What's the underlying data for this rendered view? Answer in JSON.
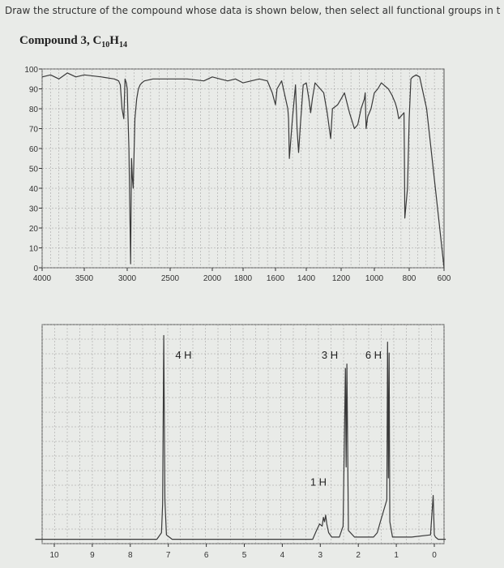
{
  "prompt": "Draw the structure of the compound whose data is shown below, then select all functional groups in the correct stru",
  "compound": {
    "name": "Compound 3, ",
    "c": "C",
    "c_count": "10",
    "h": "H",
    "h_count": "14"
  },
  "colors": {
    "background": "#e9ebe8",
    "grid": "#9a9a9a",
    "trace": "#3a3a3a",
    "frame": "#555555"
  },
  "chart_data": [
    {
      "type": "line",
      "title": "",
      "xlabel": "",
      "ylabel": "",
      "xlim": [
        4000,
        600
      ],
      "ylim": [
        0,
        100
      ],
      "x_ticks": [
        "4000",
        "3500",
        "3000",
        "2500",
        "2000",
        "1800",
        "1600",
        "1400",
        "1200",
        "1000",
        "800",
        "600"
      ],
      "x_tick_values": [
        4000,
        3500,
        3000,
        2500,
        2000,
        1800,
        1600,
        1400,
        1200,
        1000,
        800,
        600
      ],
      "y_ticks": [
        "0",
        "10",
        "20",
        "30",
        "40",
        "50",
        "60",
        "70",
        "80",
        "90",
        "100"
      ],
      "y_tick_values": [
        0,
        10,
        20,
        30,
        40,
        50,
        60,
        70,
        80,
        90,
        100
      ],
      "series": [
        {
          "x": [
            4000,
            3900,
            3800,
            3700,
            3600,
            3500,
            3300,
            3150,
            3100,
            3080,
            3060,
            3040,
            3025,
            3010,
            3000,
            2980,
            2960,
            2950,
            2940,
            2930,
            2910,
            2890,
            2870,
            2850,
            2830,
            2800,
            2700,
            2500,
            2300,
            2100,
            2000,
            1950,
            1900,
            1850,
            1800,
            1700,
            1650,
            1620,
            1610,
            1600,
            1590,
            1560,
            1520,
            1515,
            1510,
            1500,
            1490,
            1470,
            1460,
            1450,
            1440,
            1420,
            1400,
            1385,
            1375,
            1365,
            1350,
            1300,
            1280,
            1260,
            1250,
            1220,
            1200,
            1180,
            1150,
            1120,
            1100,
            1080,
            1060,
            1055,
            1050,
            1040,
            1020,
            1000,
            980,
            960,
            920,
            900,
            880,
            870,
            860,
            850,
            830,
            828,
            825,
            820,
            810,
            800,
            790,
            780,
            760,
            740,
            700,
            650,
            600
          ],
          "y": [
            96,
            97,
            95,
            98,
            96,
            97,
            96,
            95,
            94,
            92,
            80,
            75,
            95,
            93,
            90,
            60,
            2,
            55,
            45,
            40,
            75,
            85,
            90,
            92,
            93,
            94,
            95,
            95,
            95,
            94,
            96,
            95,
            94,
            95,
            93,
            95,
            94,
            88,
            85,
            82,
            90,
            94,
            80,
            75,
            55,
            65,
            75,
            92,
            70,
            58,
            70,
            92,
            93,
            85,
            78,
            85,
            93,
            88,
            78,
            65,
            80,
            82,
            85,
            88,
            78,
            70,
            72,
            80,
            85,
            88,
            70,
            76,
            80,
            88,
            90,
            93,
            90,
            87,
            83,
            80,
            75,
            76,
            78,
            60,
            25,
            30,
            40,
            75,
            95,
            96,
            97,
            96,
            80,
            40,
            0
          ]
        }
      ],
      "annotations": [],
      "grid": true
    },
    {
      "type": "line",
      "title": "",
      "xlabel": "",
      "ylabel": "",
      "xlim": [
        10.5,
        -0.3
      ],
      "ylim": [
        0,
        100
      ],
      "x_ticks": [
        "10",
        "9",
        "8",
        "7",
        "6",
        "5",
        "4",
        "3",
        "2",
        "1",
        "0"
      ],
      "x_tick_values": [
        10,
        9,
        8,
        7,
        6,
        5,
        4,
        3,
        2,
        1,
        0
      ],
      "series": [
        {
          "x": [
            10.5,
            9,
            7.3,
            7.18,
            7.15,
            7.12,
            7.09,
            7.05,
            6.9,
            5,
            4,
            3.2,
            3.1,
            3.02,
            2.95,
            2.92,
            2.89,
            2.86,
            2.83,
            2.78,
            2.7,
            2.5,
            2.4,
            2.34,
            2.32,
            2.3,
            2.26,
            2.1,
            1.6,
            1.5,
            1.42,
            1.25,
            1.23,
            1.21,
            1.19,
            1.17,
            1.1,
            0.6,
            0.1,
            0.03,
            0,
            -0.03,
            -0.1,
            -0.3
          ],
          "y": [
            2,
            2,
            2,
            5,
            18,
            95,
            20,
            4,
            2,
            2,
            2,
            2,
            6,
            9,
            8,
            12,
            10,
            13,
            9,
            5,
            3,
            3,
            8,
            80,
            35,
            82,
            6,
            3,
            3,
            5,
            10,
            20,
            92,
            30,
            87,
            10,
            3,
            3,
            4,
            22,
            4,
            3,
            2,
            2
          ]
        }
      ],
      "annotations": [
        {
          "text": "4 H",
          "x": 6.6,
          "y": 86
        },
        {
          "text": "3 H",
          "x": 2.75,
          "y": 86
        },
        {
          "text": "6 H",
          "x": 1.6,
          "y": 86
        },
        {
          "text": "1 H",
          "x": 3.05,
          "y": 28
        }
      ],
      "grid": true
    }
  ]
}
